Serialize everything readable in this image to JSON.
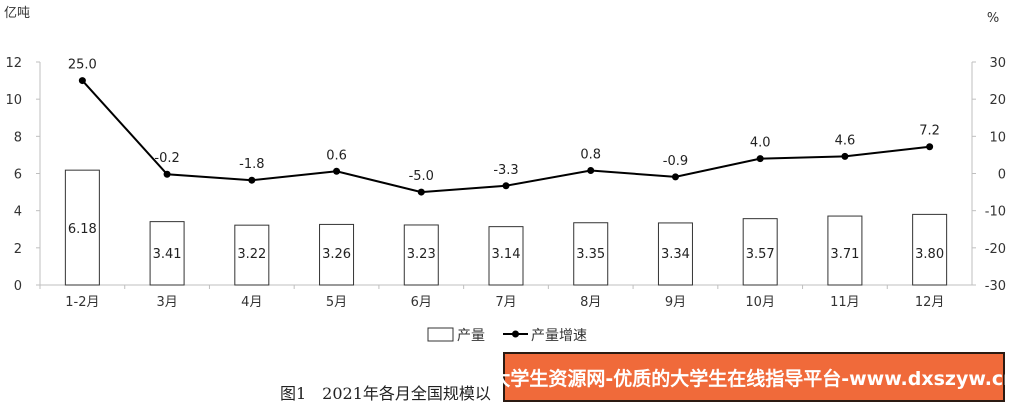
{
  "chart_data": {
    "type": "bar+line",
    "categories": [
      "1-2月",
      "3月",
      "4月",
      "5月",
      "6月",
      "7月",
      "8月",
      "9月",
      "10月",
      "11月",
      "12月"
    ],
    "series": [
      {
        "name": "产量",
        "type": "bar",
        "axis": "left",
        "values": [
          6.18,
          3.41,
          3.22,
          3.26,
          3.23,
          3.14,
          3.35,
          3.34,
          3.57,
          3.71,
          3.8
        ],
        "labels": [
          "6.18",
          "3.41",
          "3.22",
          "3.26",
          "3.23",
          "3.14",
          "3.35",
          "3.34",
          "3.57",
          "3.71",
          "3.80"
        ]
      },
      {
        "name": "产量增速",
        "type": "line",
        "axis": "right",
        "values": [
          25.0,
          -0.2,
          -1.8,
          0.6,
          -5.0,
          -3.3,
          0.8,
          -0.9,
          4.0,
          4.6,
          7.2
        ],
        "labels": [
          "25.0",
          "-0.2",
          "-1.8",
          "0.6",
          "-5.0",
          "-3.3",
          "0.8",
          "-0.9",
          "4.0",
          "4.6",
          "7.2"
        ]
      }
    ],
    "ylabel_left": "亿吨",
    "ylabel_right": "%",
    "ylim_left": [
      0,
      12
    ],
    "yticks_left": [
      "0",
      "2",
      "4",
      "6",
      "8",
      "10",
      "12"
    ],
    "ylim_right": [
      -30,
      30
    ],
    "yticks_right": [
      "-30",
      "-20",
      "-10",
      "0",
      "10",
      "20",
      "30"
    ],
    "legend_position": "bottom-center",
    "grid": false
  },
  "caption": "图1　2021年各月全国规模以",
  "watermark": "大学生资源网-优质的大学生在线指导平台-www.dxszyw.cn"
}
